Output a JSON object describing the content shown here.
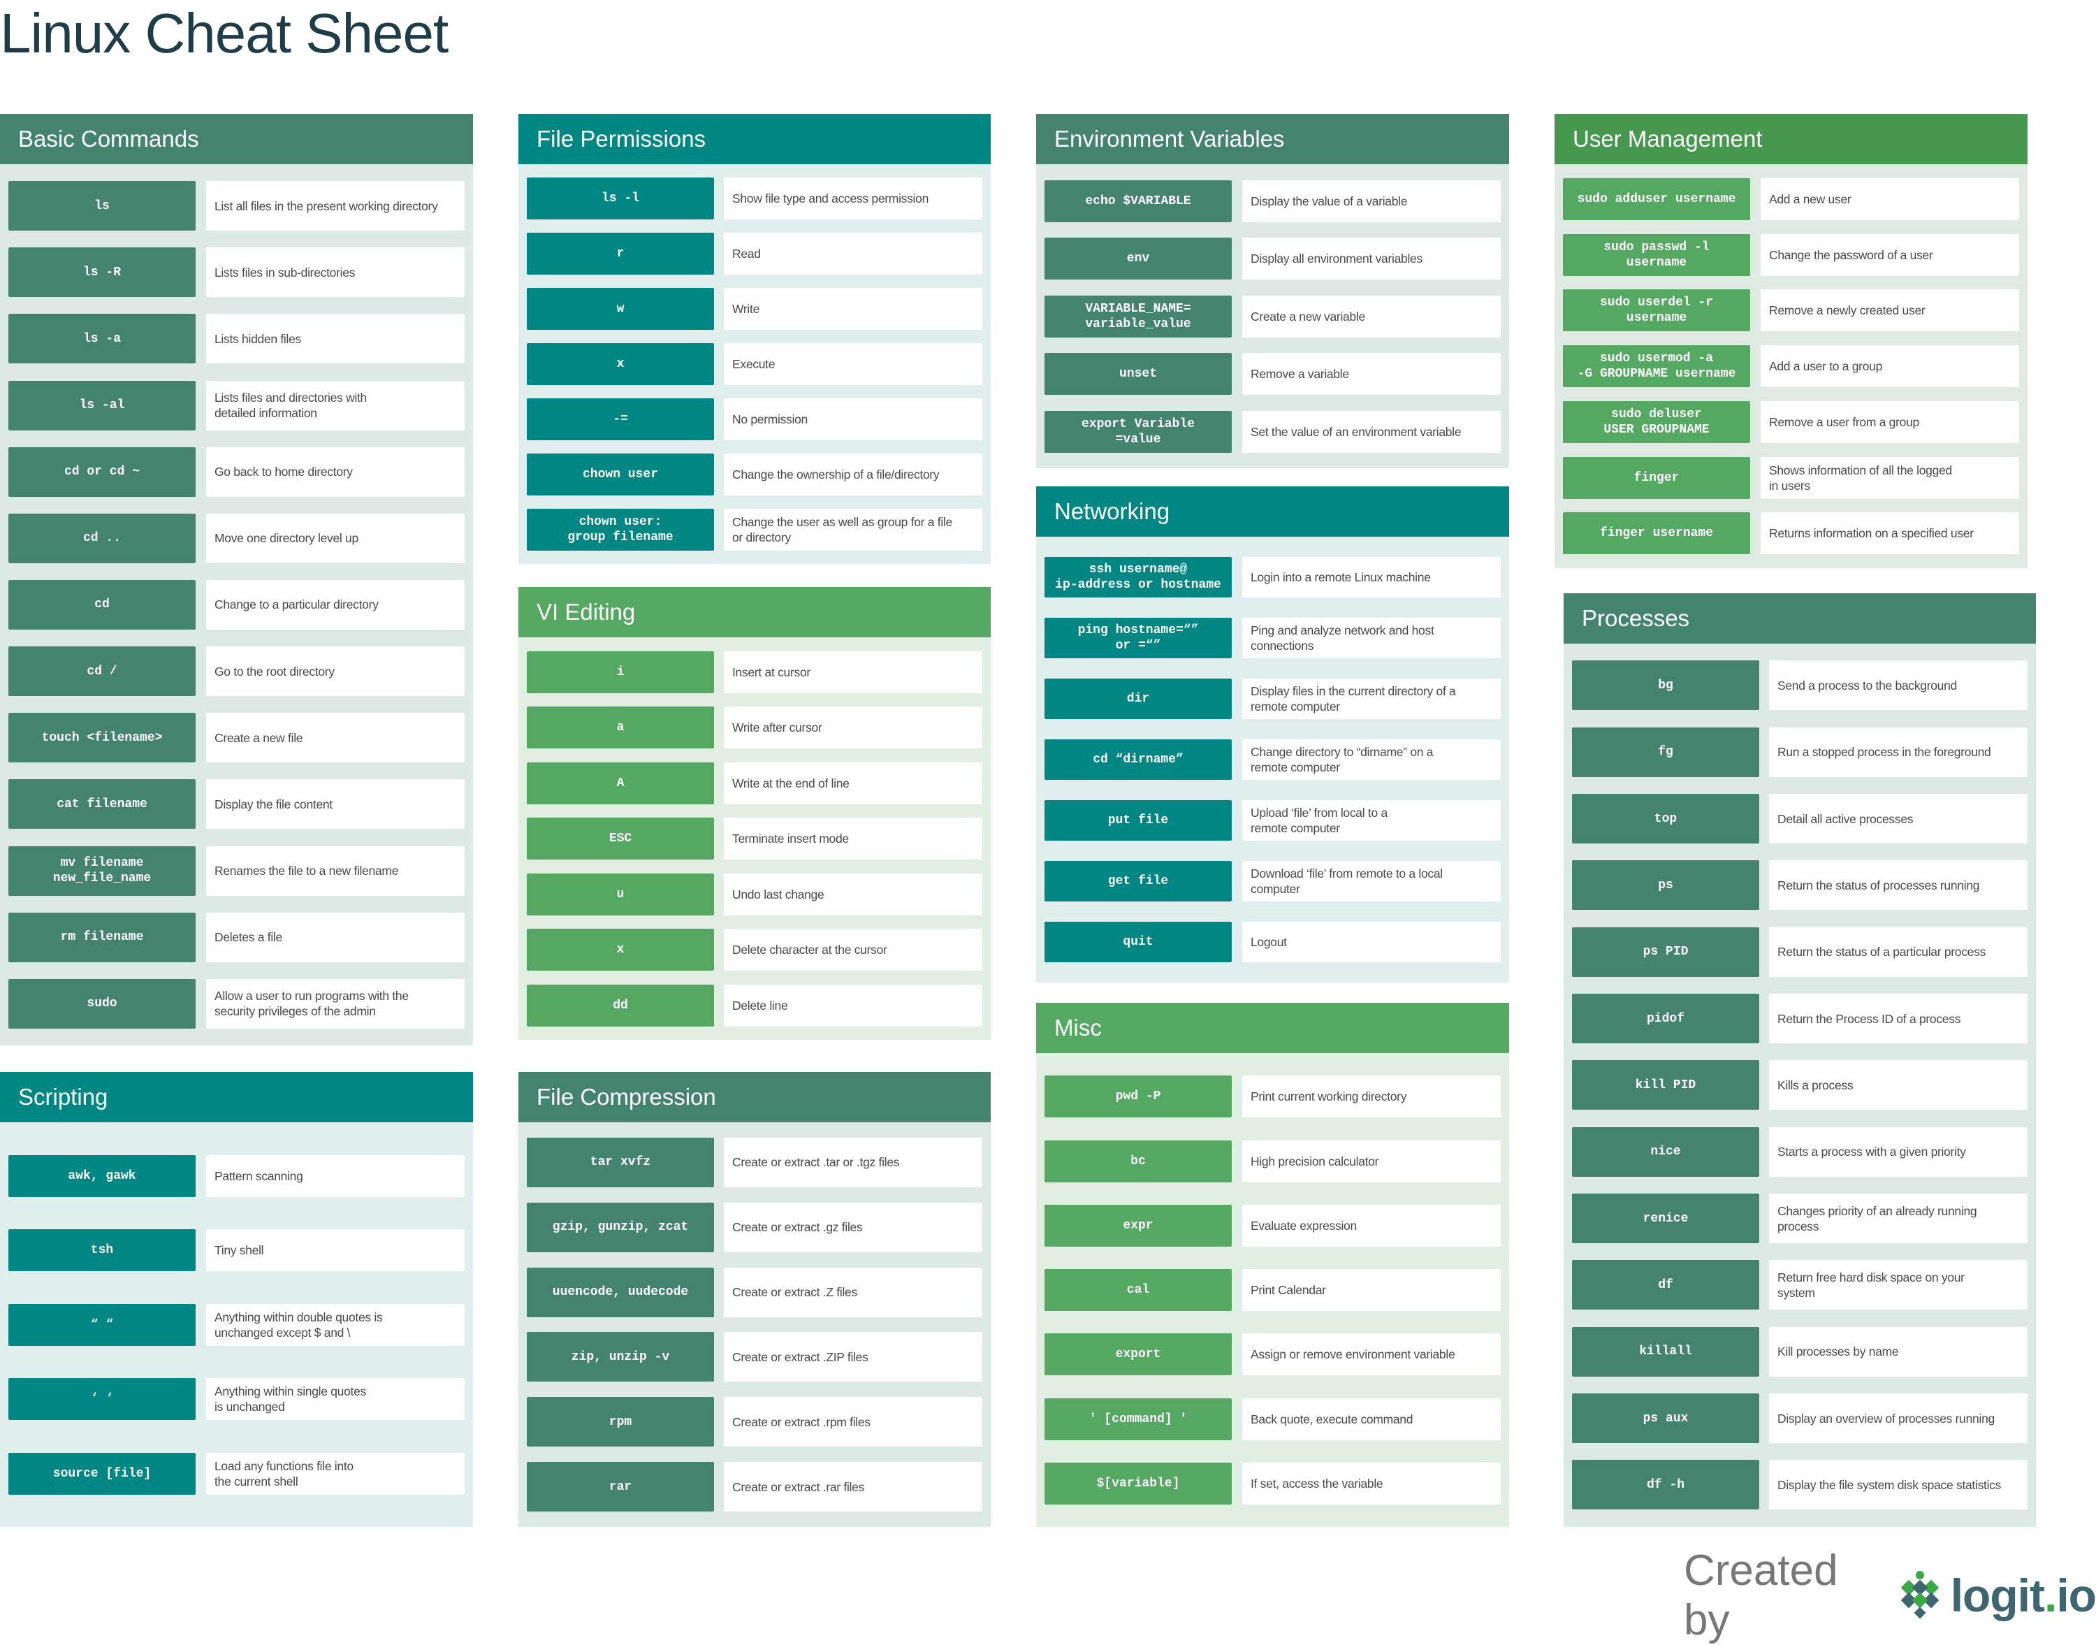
{
  "title": "Linux Cheat Sheet",
  "footer": {
    "created_by": "Created by",
    "logo_text": "logit.io"
  },
  "colors": {
    "dark_green": "#44846e",
    "teal": "#008683",
    "green": "#55a862",
    "user_header": "#47984f",
    "title": "#1f3d48"
  },
  "sections": [
    {
      "id": "basic",
      "theme": "dark",
      "title": "Basic Commands",
      "rows": [
        {
          "cmd": "ls",
          "desc": "List all files in the present working directory"
        },
        {
          "cmd": "ls -R",
          "desc": "Lists files in sub-directories"
        },
        {
          "cmd": "ls -a",
          "desc": "Lists hidden files"
        },
        {
          "cmd": "ls -al",
          "desc": "Lists files and directories with\ndetailed information"
        },
        {
          "cmd": "cd or cd ~",
          "desc": "Go back to home directory"
        },
        {
          "cmd": "cd ..",
          "desc": "Move one directory level up"
        },
        {
          "cmd": "cd",
          "desc": "Change to a particular directory"
        },
        {
          "cmd": "cd /",
          "desc": "Go to the root directory"
        },
        {
          "cmd": "touch <filename>",
          "desc": "Create a new file"
        },
        {
          "cmd": "cat filename",
          "desc": "Display the file content"
        },
        {
          "cmd": "mv filename\nnew_file_name",
          "desc": "Renames the file to a new filename"
        },
        {
          "cmd": "rm filename",
          "desc": "Deletes a file"
        },
        {
          "cmd": "sudo",
          "desc": "Allow a user to run programs with the\nsecurity privileges of the admin"
        }
      ]
    },
    {
      "id": "scripting",
      "theme": "teal",
      "title": "Scripting",
      "rows": [
        {
          "cmd": "awk, gawk",
          "desc": "Pattern scanning"
        },
        {
          "cmd": "tsh",
          "desc": "Tiny shell"
        },
        {
          "cmd": "“ “",
          "desc": "Anything within double quotes is\nunchanged except $ and \\"
        },
        {
          "cmd": "‘ ‘",
          "desc": "Anything within single quotes\nis unchanged"
        },
        {
          "cmd": "source [file]",
          "desc": "Load any functions file into\nthe current shell"
        }
      ]
    },
    {
      "id": "perm",
      "theme": "teal",
      "title": "File Permissions",
      "rows": [
        {
          "cmd": "ls -l",
          "desc": "Show file type and access permission"
        },
        {
          "cmd": "r",
          "desc": "Read"
        },
        {
          "cmd": "w",
          "desc": "Write"
        },
        {
          "cmd": "x",
          "desc": "Execute"
        },
        {
          "cmd": "-=",
          "desc": "No permission"
        },
        {
          "cmd": "chown user",
          "desc": "Change the ownership of a file/directory"
        },
        {
          "cmd": "chown user:\ngroup filename",
          "desc": "Change the user as well as group for a file\nor directory"
        }
      ]
    },
    {
      "id": "vi",
      "theme": "green",
      "title": "VI Editing",
      "rows": [
        {
          "cmd": "i",
          "desc": "Insert at cursor"
        },
        {
          "cmd": "a",
          "desc": "Write after cursor"
        },
        {
          "cmd": "A",
          "desc": "Write at the end of line"
        },
        {
          "cmd": "ESC",
          "desc": "Terminate insert mode"
        },
        {
          "cmd": "u",
          "desc": "Undo last change"
        },
        {
          "cmd": "x",
          "desc": "Delete character at the cursor"
        },
        {
          "cmd": "dd",
          "desc": "Delete line"
        }
      ]
    },
    {
      "id": "compress",
      "theme": "dark",
      "title": "File Compression",
      "rows": [
        {
          "cmd": "tar xvfz",
          "desc": "Create or extract .tar or .tgz files"
        },
        {
          "cmd": "gzip, gunzip, zcat",
          "desc": "Create or extract .gz files"
        },
        {
          "cmd": "uuencode, uudecode",
          "desc": "Create or extract .Z files"
        },
        {
          "cmd": "zip, unzip -v",
          "desc": "Create or extract .ZIP files"
        },
        {
          "cmd": "rpm",
          "desc": "Create or extract .rpm files"
        },
        {
          "cmd": "rar",
          "desc": "Create or extract .rar files"
        }
      ]
    },
    {
      "id": "env",
      "theme": "dark",
      "title": "Environment Variables",
      "rows": [
        {
          "cmd": "echo $VARIABLE",
          "desc": "Display the value of a variable"
        },
        {
          "cmd": "env",
          "desc": "Display all environment variables"
        },
        {
          "cmd": "VARIABLE_NAME=\nvariable_value",
          "desc": "Create a new variable"
        },
        {
          "cmd": "unset",
          "desc": "Remove a variable"
        },
        {
          "cmd": "export Variable\n=value",
          "desc": "Set the value of an environment variable"
        }
      ]
    },
    {
      "id": "net",
      "theme": "teal",
      "title": "Networking",
      "rows": [
        {
          "cmd": "ssh username@\nip-address or hostname",
          "desc": "Login into a remote Linux machine"
        },
        {
          "cmd": "ping hostname=“”\nor =“”",
          "desc": "Ping and analyze network and host\nconnections"
        },
        {
          "cmd": "dir",
          "desc": "Display files in the current directory of a\nremote computer"
        },
        {
          "cmd": "cd “dirname”",
          "desc": "Change directory to “dirname” on a\nremote computer"
        },
        {
          "cmd": "put file",
          "desc": "Upload ‘file’ from local to a\nremote computer"
        },
        {
          "cmd": "get file",
          "desc": "Download ‘file’ from remote to a local\ncomputer"
        },
        {
          "cmd": "quit",
          "desc": "Logout"
        }
      ]
    },
    {
      "id": "misc",
      "theme": "green",
      "title": "Misc",
      "rows": [
        {
          "cmd": "pwd -P",
          "desc": "Print current working directory"
        },
        {
          "cmd": "bc",
          "desc": "High precision calculator"
        },
        {
          "cmd": "expr",
          "desc": "Evaluate expression"
        },
        {
          "cmd": "cal",
          "desc": "Print Calendar"
        },
        {
          "cmd": "export",
          "desc": "Assign or remove environment variable"
        },
        {
          "cmd": "' [command] '",
          "desc": "Back quote, execute command"
        },
        {
          "cmd": "$[variable]",
          "desc": "If set, access the variable"
        }
      ]
    },
    {
      "id": "user",
      "theme": "user",
      "title": "User Management",
      "rows": [
        {
          "cmd": "sudo adduser username",
          "desc": "Add a new user"
        },
        {
          "cmd": "sudo passwd -l\nusername",
          "desc": "Change the password of a user"
        },
        {
          "cmd": "sudo userdel -r\nusername",
          "desc": "Remove a newly created user"
        },
        {
          "cmd": "sudo usermod -a\n-G GROUPNAME username",
          "desc": "Add a user to a group"
        },
        {
          "cmd": "sudo deluser\nUSER GROUPNAME",
          "desc": "Remove a user from a group"
        },
        {
          "cmd": "finger",
          "desc": "Shows information of all the logged\nin users"
        },
        {
          "cmd": "finger username",
          "desc": "Returns information on a specified user"
        }
      ]
    },
    {
      "id": "proc",
      "theme": "dark",
      "title": "Processes",
      "rows": [
        {
          "cmd": "bg",
          "desc": "Send a process to the background"
        },
        {
          "cmd": "fg",
          "desc": "Run a stopped process in the foreground"
        },
        {
          "cmd": "top",
          "desc": "Detail all active processes"
        },
        {
          "cmd": "ps",
          "desc": "Return the status of processes running"
        },
        {
          "cmd": "ps PID",
          "desc": "Return the status of a particular process"
        },
        {
          "cmd": "pidof",
          "desc": "Return the Process ID of a process"
        },
        {
          "cmd": "kill PID",
          "desc": "Kills a process"
        },
        {
          "cmd": "nice",
          "desc": "Starts a process with a given priority"
        },
        {
          "cmd": "renice",
          "desc": "Changes priority of an already running\nprocess"
        },
        {
          "cmd": "df",
          "desc": "Return free hard disk space on your\nsystem"
        },
        {
          "cmd": "killall",
          "desc": "Kill processes by name"
        },
        {
          "cmd": "ps aux",
          "desc": "Display an overview of processes running"
        },
        {
          "cmd": "df -h",
          "desc": "Display the file system disk space statistics"
        }
      ]
    }
  ]
}
